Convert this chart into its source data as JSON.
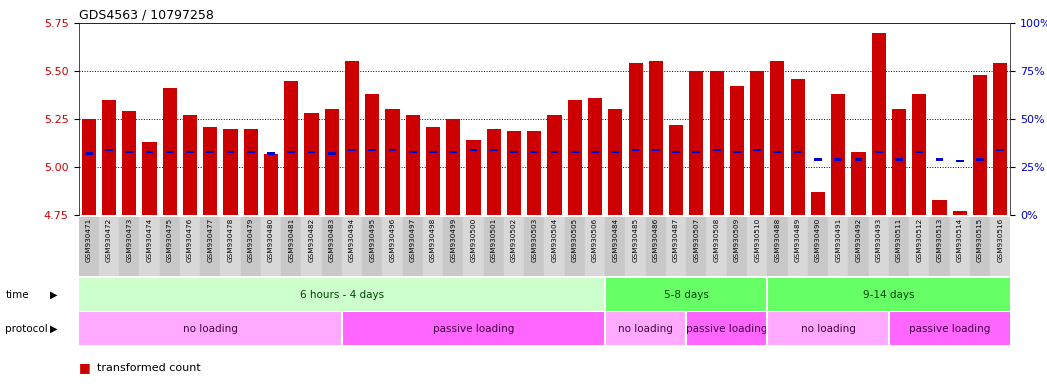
{
  "title": "GDS4563 / 10797258",
  "categories": [
    "GSM930471",
    "GSM930472",
    "GSM930473",
    "GSM930474",
    "GSM930475",
    "GSM930476",
    "GSM930477",
    "GSM930478",
    "GSM930479",
    "GSM930480",
    "GSM930481",
    "GSM930482",
    "GSM930483",
    "GSM930494",
    "GSM930495",
    "GSM930496",
    "GSM930497",
    "GSM930498",
    "GSM930499",
    "GSM930500",
    "GSM930501",
    "GSM930502",
    "GSM930503",
    "GSM930504",
    "GSM930505",
    "GSM930506",
    "GSM930484",
    "GSM930485",
    "GSM930486",
    "GSM930487",
    "GSM930507",
    "GSM930508",
    "GSM930509",
    "GSM930510",
    "GSM930488",
    "GSM930489",
    "GSM930490",
    "GSM930491",
    "GSM930492",
    "GSM930493",
    "GSM930511",
    "GSM930512",
    "GSM930513",
    "GSM930514",
    "GSM930515",
    "GSM930516"
  ],
  "bar_values": [
    5.25,
    5.35,
    5.29,
    5.13,
    5.41,
    5.27,
    5.21,
    5.2,
    5.2,
    5.07,
    5.45,
    5.28,
    5.3,
    5.55,
    5.38,
    5.3,
    5.27,
    5.21,
    5.25,
    5.14,
    5.2,
    5.19,
    5.19,
    5.27,
    5.35,
    5.36,
    5.3,
    5.54,
    5.55,
    5.22,
    5.5,
    5.5,
    5.42,
    5.5,
    5.55,
    5.46,
    4.87,
    5.38,
    5.08,
    5.7,
    5.3,
    5.38,
    4.83,
    4.77,
    5.48,
    5.54
  ],
  "blue_values": [
    5.07,
    5.09,
    5.08,
    5.08,
    5.08,
    5.08,
    5.08,
    5.08,
    5.08,
    5.07,
    5.08,
    5.08,
    5.07,
    5.09,
    5.09,
    5.09,
    5.08,
    5.08,
    5.08,
    5.09,
    5.09,
    5.08,
    5.08,
    5.08,
    5.08,
    5.08,
    5.08,
    5.09,
    5.09,
    5.08,
    5.08,
    5.09,
    5.08,
    5.09,
    5.08,
    5.08,
    5.04,
    5.04,
    5.04,
    5.08,
    5.04,
    5.08,
    5.04,
    5.03,
    5.04,
    5.09
  ],
  "ylim": [
    4.75,
    5.75
  ],
  "yticks_left": [
    4.75,
    5.0,
    5.25,
    5.5,
    5.75
  ],
  "yticks_right": [
    0,
    25,
    50,
    75,
    100
  ],
  "right_ylabels": [
    "0%",
    "25%",
    "50%",
    "75%",
    "100%"
  ],
  "bar_color": "#cc0000",
  "blue_color": "#0000cc",
  "left_label_color": "#cc0000",
  "right_label_color": "#0000cc",
  "time_groups": [
    {
      "label": "6 hours - 4 days",
      "start": 0,
      "end": 26,
      "color": "#ccffcc"
    },
    {
      "label": "5-8 days",
      "start": 26,
      "end": 34,
      "color": "#66ff66"
    },
    {
      "label": "9-14 days",
      "start": 34,
      "end": 46,
      "color": "#66ff66"
    }
  ],
  "protocol_groups": [
    {
      "label": "no loading",
      "start": 0,
      "end": 13,
      "color": "#ffaaff"
    },
    {
      "label": "passive loading",
      "start": 13,
      "end": 26,
      "color": "#ff66ff"
    },
    {
      "label": "no loading",
      "start": 26,
      "end": 30,
      "color": "#ffaaff"
    },
    {
      "label": "passive loading",
      "start": 30,
      "end": 34,
      "color": "#ff66ff"
    },
    {
      "label": "no loading",
      "start": 34,
      "end": 40,
      "color": "#ffaaff"
    },
    {
      "label": "passive loading",
      "start": 40,
      "end": 46,
      "color": "#ff66ff"
    }
  ],
  "bg_color": "#ffffff"
}
